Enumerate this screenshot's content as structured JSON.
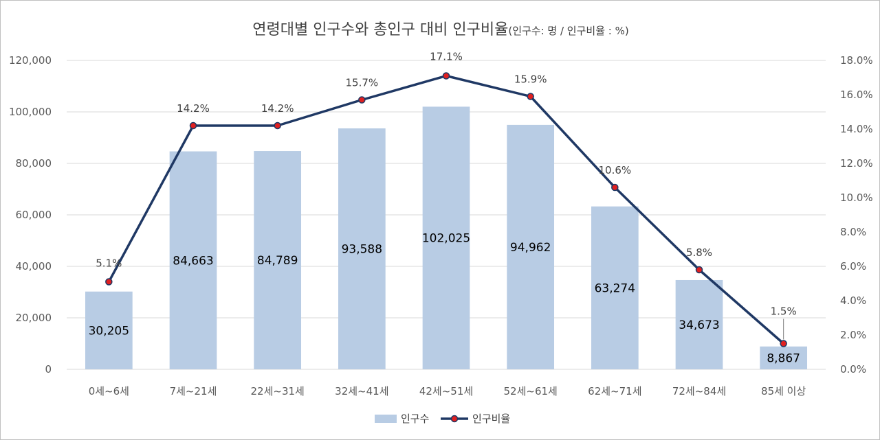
{
  "chart_data": {
    "type": "bar",
    "title": "연령대별 인구수와 총인구 대비 인구비율",
    "subtitle": "(인구수: 명 / 인구비율 : %)",
    "categories": [
      "0세~6세",
      "7세~21세",
      "22세~31세",
      "32세~41세",
      "42세~51세",
      "52세~61세",
      "62세~71세",
      "72세~84세",
      "85세 이상"
    ],
    "series": [
      {
        "name": "인구수",
        "type": "bar",
        "axis": "left",
        "color": "#b8cce4",
        "values": [
          30205,
          84663,
          84789,
          93588,
          102025,
          94962,
          63274,
          34673,
          8867
        ],
        "labels": [
          "30,205",
          "84,663",
          "84,789",
          "93,588",
          "102,025",
          "94,962",
          "63,274",
          "34,673",
          "8,867"
        ]
      },
      {
        "name": "인구비율",
        "type": "line",
        "axis": "right",
        "color": "#1f3864",
        "marker_color": "#e02020",
        "values": [
          5.1,
          14.2,
          14.2,
          15.7,
          17.1,
          15.9,
          10.6,
          5.8,
          1.5
        ],
        "labels": [
          "5.1%",
          "14.2%",
          "14.2%",
          "15.7%",
          "17.1%",
          "15.9%",
          "10.6%",
          "5.8%",
          "1.5%"
        ]
      }
    ],
    "y_left": {
      "ylim": [
        0,
        120000
      ],
      "ticks": [
        0,
        20000,
        40000,
        60000,
        80000,
        100000,
        120000
      ],
      "tick_labels": [
        "0",
        "20,000",
        "40,000",
        "60,000",
        "80,000",
        "100,000",
        "120,000"
      ]
    },
    "y_right": {
      "ylim": [
        0,
        18
      ],
      "ticks": [
        0,
        2,
        4,
        6,
        8,
        10,
        12,
        14,
        16,
        18
      ],
      "tick_labels": [
        "0.0%",
        "2.0%",
        "4.0%",
        "6.0%",
        "8.0%",
        "10.0%",
        "12.0%",
        "14.0%",
        "16.0%",
        "18.0%"
      ]
    },
    "grid": true,
    "legend": "bottom",
    "gridline_color": "#d9d9d9"
  }
}
